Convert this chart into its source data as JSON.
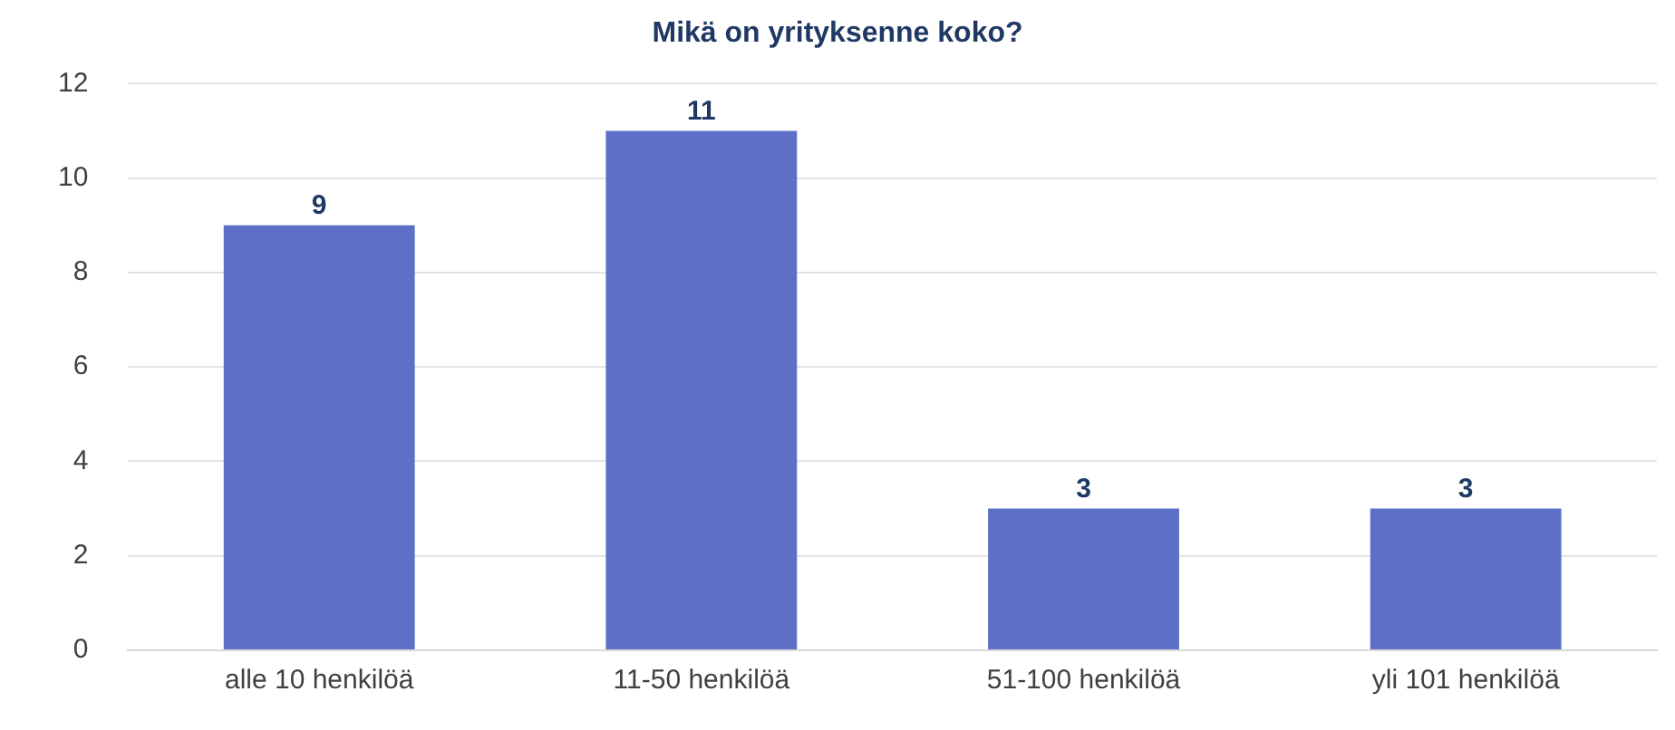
{
  "chart_data": {
    "type": "bar",
    "title": "Mikä on yrityksenne koko?",
    "categories": [
      "alle 10 henkilöä",
      "11-50 henkilöä",
      "51-100 henkilöä",
      "yli 101 henkilöä"
    ],
    "values": [
      9,
      11,
      3,
      3
    ],
    "color": "#5d6fc6",
    "ylim": [
      0,
      12
    ],
    "yticks": [
      0,
      2,
      4,
      6,
      8,
      10,
      12
    ],
    "grid": "y",
    "data_labels": true
  }
}
